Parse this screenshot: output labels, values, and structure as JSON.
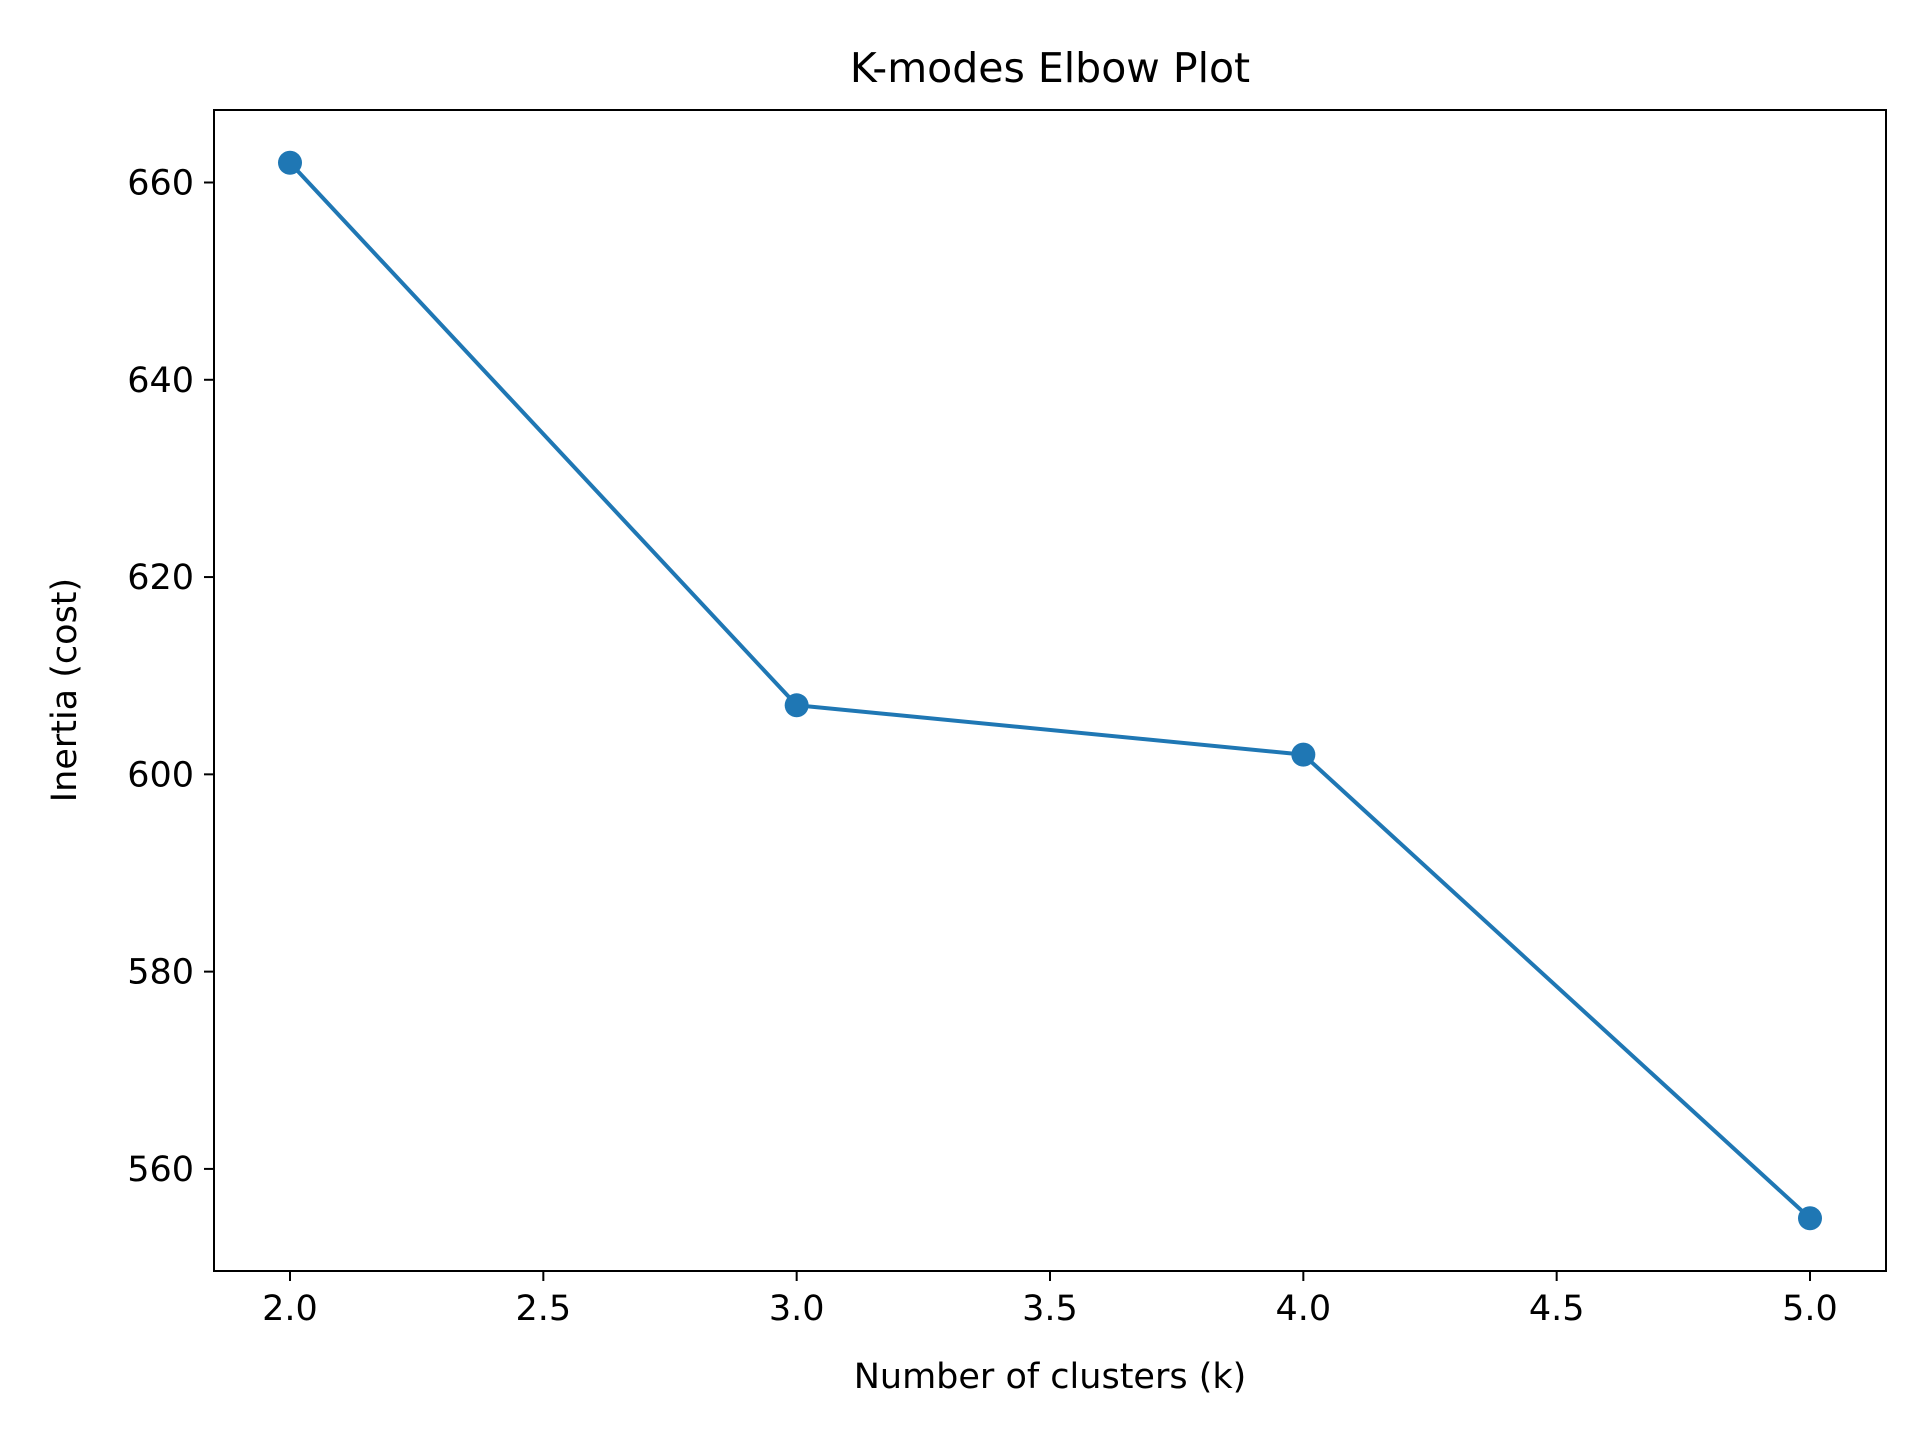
{
  "chart_data": {
    "type": "line",
    "title": "K-modes Elbow Plot",
    "xlabel": "Number of clusters (k)",
    "ylabel": "Inertia (cost)",
    "x": [
      2,
      3,
      4,
      5
    ],
    "series": [
      {
        "values": [
          662,
          607,
          602,
          555
        ]
      }
    ],
    "xlim": [
      1.85,
      5.15
    ],
    "ylim": [
      549.65,
      667.35
    ],
    "x_ticks": [
      2.0,
      2.5,
      3.0,
      3.5,
      4.0,
      4.5,
      5.0
    ],
    "x_tick_labels": [
      "2.0",
      "2.5",
      "3.0",
      "3.5",
      "4.0",
      "4.5",
      "5.0"
    ],
    "y_ticks": [
      560,
      580,
      600,
      620,
      640,
      660
    ],
    "y_tick_labels": [
      "560",
      "580",
      "600",
      "620",
      "640",
      "660"
    ],
    "marker": "circle",
    "grid": false,
    "legend": false,
    "colors": {
      "series": "#1f77b4",
      "axes": "#000000",
      "background": "#ffffff"
    }
  }
}
